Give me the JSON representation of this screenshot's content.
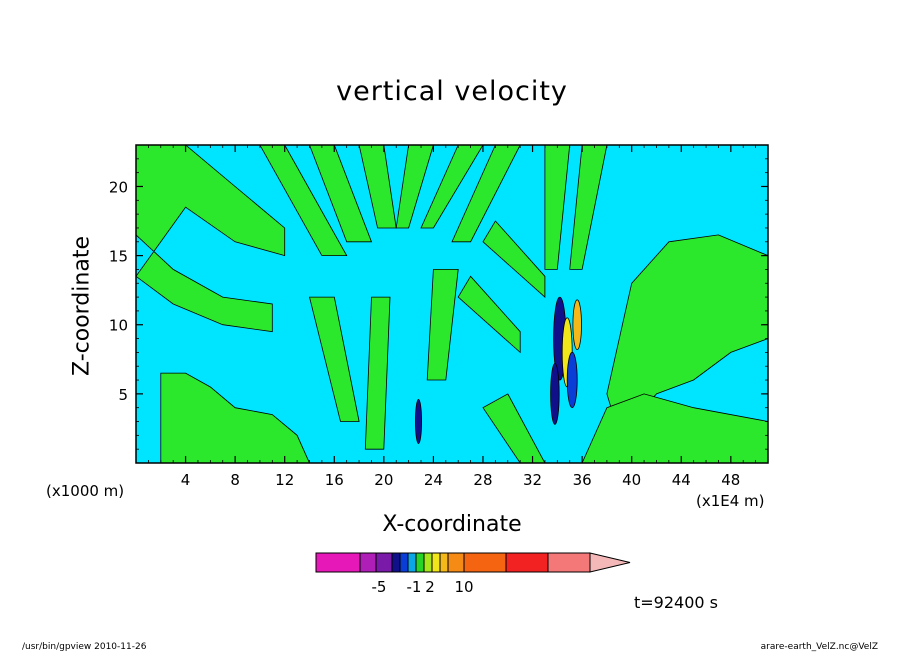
{
  "colors": {
    "background": "#ffffff",
    "weak_positive": "#00e5ff",
    "weak_negative": "#2ce82c",
    "contour_line": "#000000"
  },
  "chart_data": {
    "type": "heatmap",
    "title": "vertical velocity",
    "xlabel": "X-coordinate",
    "ylabel": "Z-coordinate",
    "x_unit_left": "(x1000 m)",
    "x_unit_right": "(x1E4 m)",
    "xlim": [
      0,
      51
    ],
    "ylim": [
      0,
      23
    ],
    "x_ticks": [
      4,
      8,
      12,
      16,
      20,
      24,
      28,
      32,
      36,
      40,
      44,
      48
    ],
    "y_ticks": [
      5,
      10,
      15,
      20
    ],
    "colorbar": {
      "colors": [
        "#e619b8",
        "#b01eb8",
        "#7a1aa8",
        "#10108a",
        "#0a3cd6",
        "#0aa6e6",
        "#26d426",
        "#a6e61a",
        "#f0e61a",
        "#f5b81a",
        "#f58a14",
        "#f56410",
        "#f22222",
        "#f57878",
        "#f5b8b8"
      ],
      "tick_labels": [
        "-5",
        "-1",
        "2",
        "10"
      ]
    },
    "time_label": "t=92400 s"
  },
  "footer": {
    "left": "/usr/bin/gpview   2010-11-26",
    "right": "arare-earth_VelZ.nc@VelZ"
  }
}
